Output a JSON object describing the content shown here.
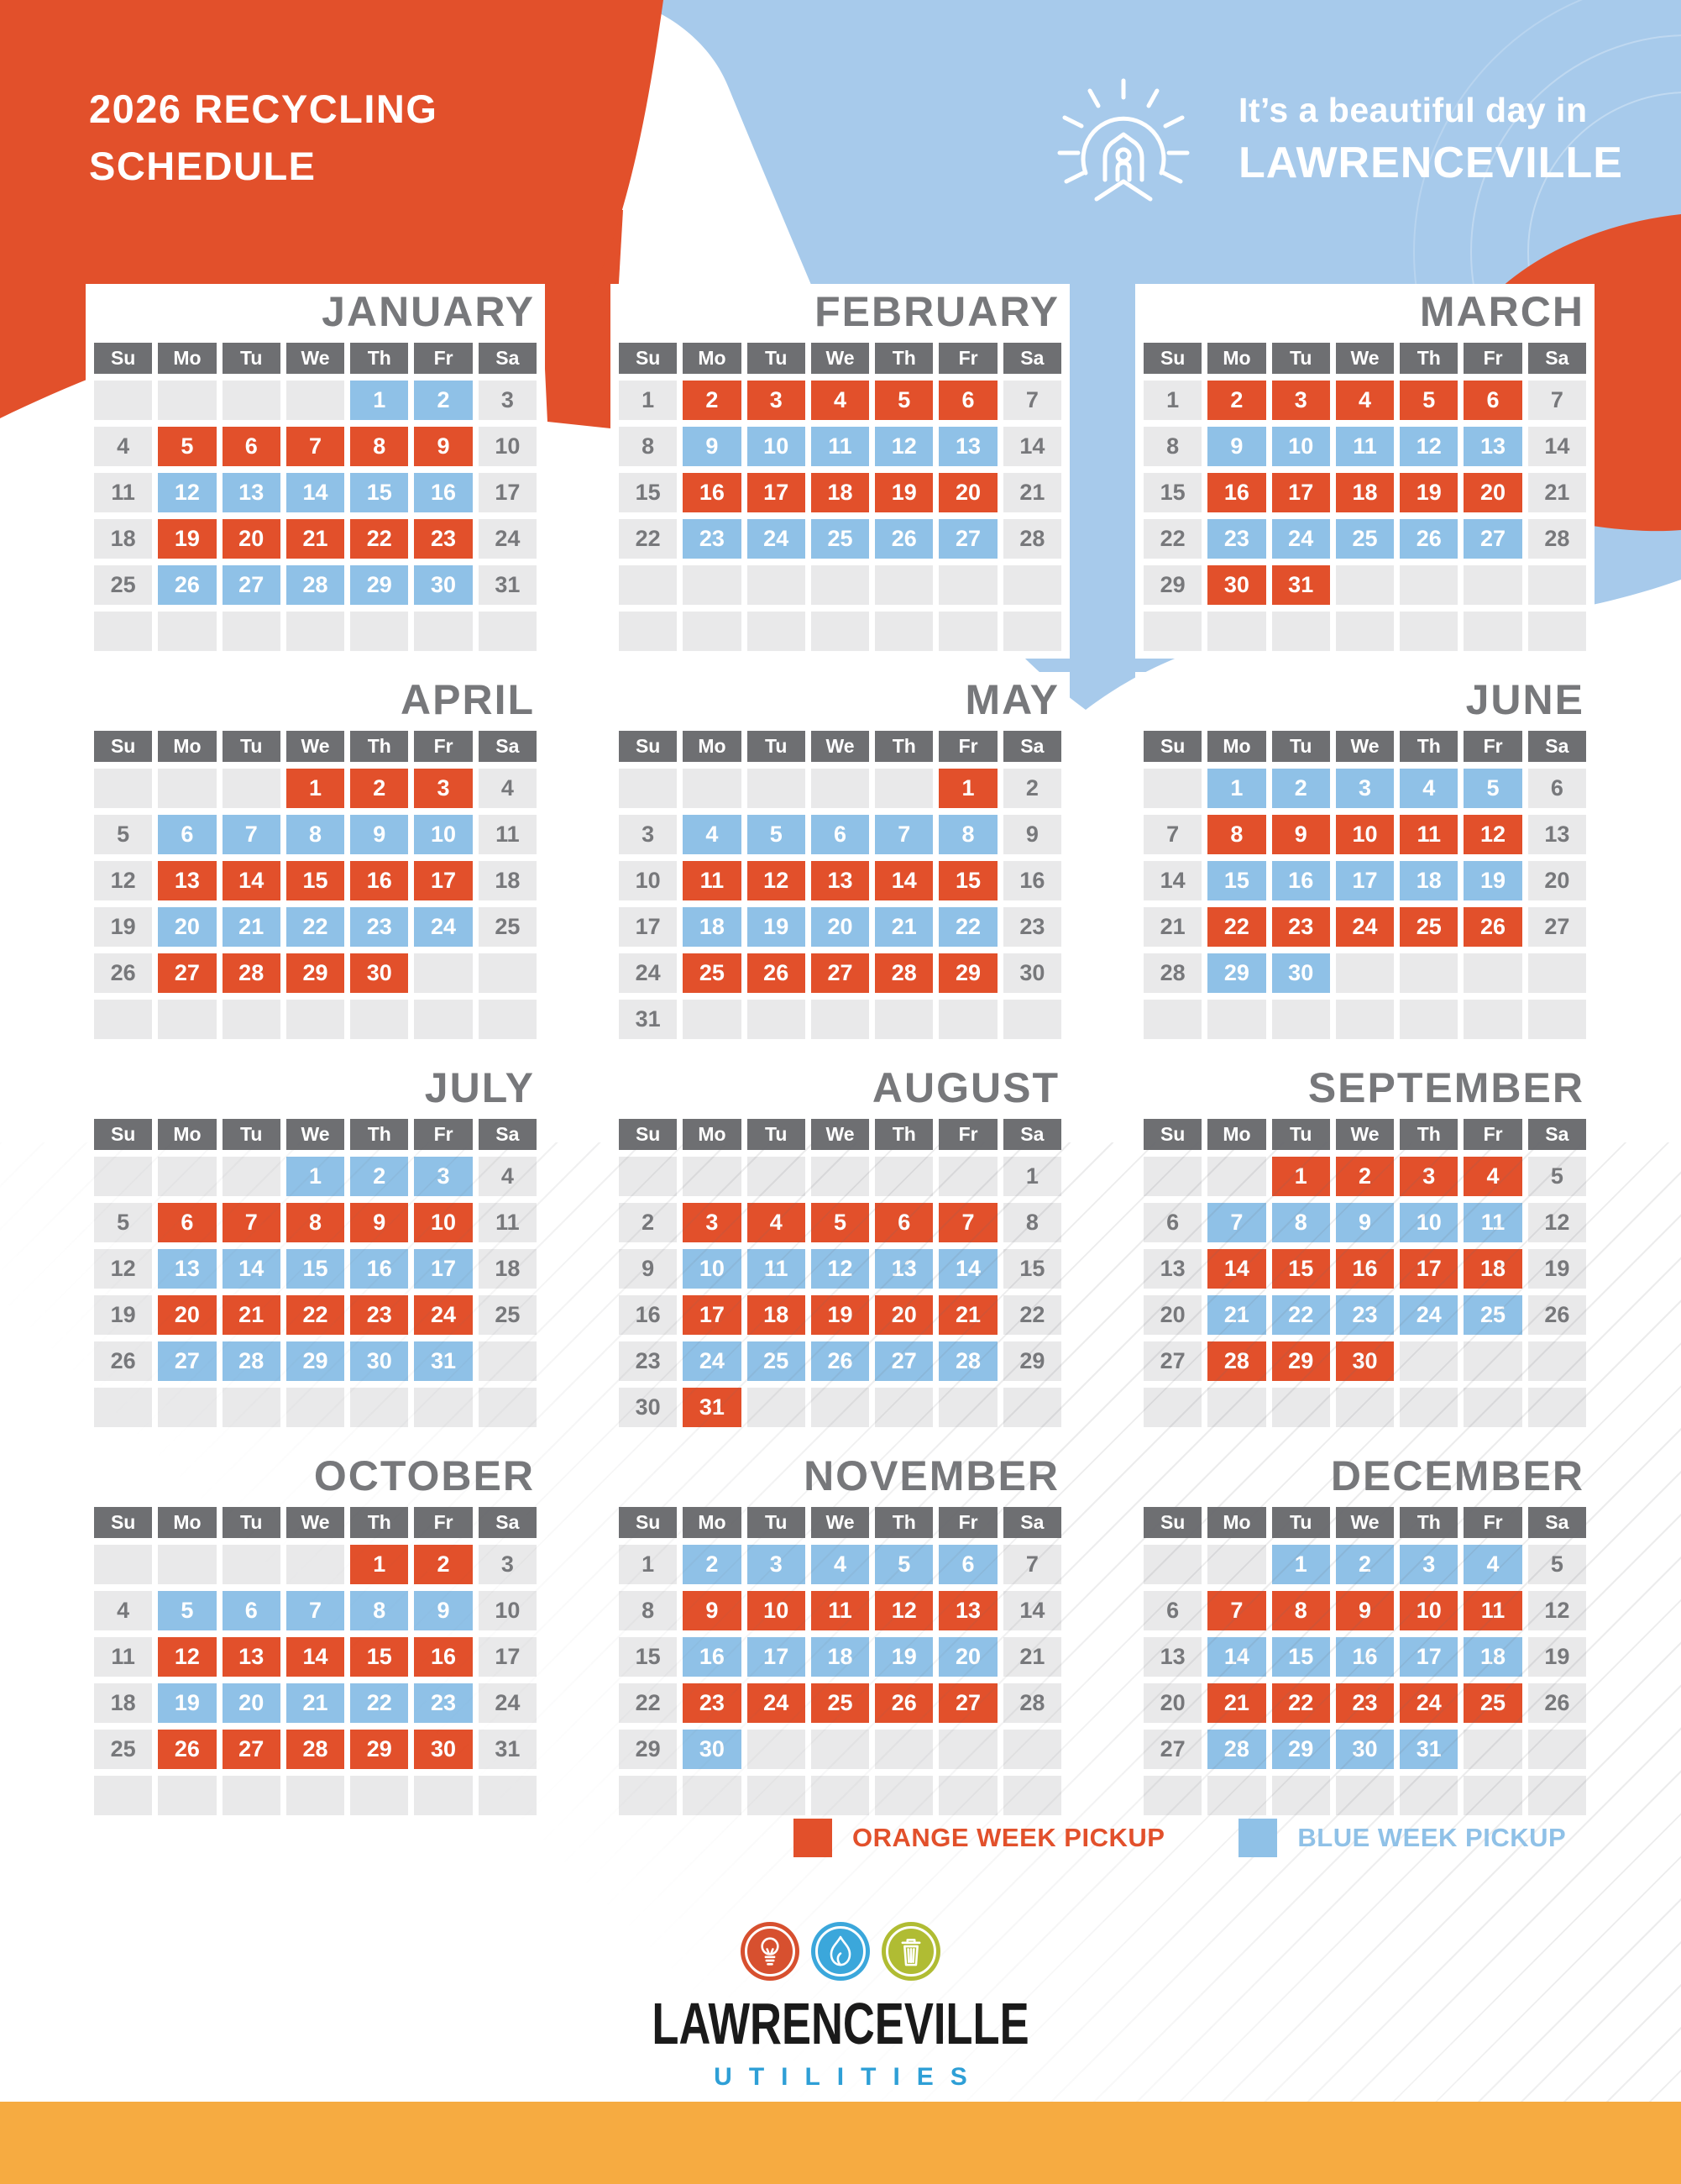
{
  "header": {
    "title_line1": "2026 RECYCLING",
    "title_line2": "SCHEDULE",
    "tagline_line1": "It’s a beautiful day in",
    "tagline_line2": "LAWRENCEVILLE"
  },
  "day_headers": [
    "Su",
    "Mo",
    "Tu",
    "We",
    "Th",
    "Fr",
    "Sa"
  ],
  "legend": [
    {
      "key": "orange",
      "label": "ORANGE WEEK PICKUP",
      "color": "#E2502B"
    },
    {
      "key": "blue",
      "label": "BLUE WEEK PICKUP",
      "color": "#8FC1E7"
    }
  ],
  "footer_logo": {
    "icons": [
      "lightbulb-icon",
      "flame-icon",
      "trash-icon"
    ],
    "name": "LAWRENCEVILLE",
    "sub": "UTILITIES"
  },
  "colors": {
    "orange": "#E2502B",
    "blue_cell": "#8FC1E7",
    "blue_bg": "#A7CAEB",
    "day_header_bg": "#6E6F72",
    "empty_cell_bg": "#E9E9EA",
    "muted_text": "#77787B",
    "footer_bar": "#F6AB41",
    "logo_black": "#1A1A1A",
    "utilities_blue": "#2E9FD6",
    "circle_orange": "#D7502F",
    "circle_blue": "#3BA7DB",
    "circle_olive": "#B0BC33"
  },
  "months": [
    {
      "name": "JANUARY",
      "cells": [
        "",
        "",
        "",
        "",
        "1b",
        "2b",
        "3g",
        "4g",
        "5o",
        "6o",
        "7o",
        "8o",
        "9o",
        "10g",
        "11g",
        "12b",
        "13b",
        "14b",
        "15b",
        "16b",
        "17g",
        "18g",
        "19o",
        "20o",
        "21o",
        "22o",
        "23o",
        "24g",
        "25g",
        "26b",
        "27b",
        "28b",
        "29b",
        "30b",
        "31g",
        "",
        "",
        "",
        "",
        "",
        "",
        ""
      ]
    },
    {
      "name": "FEBRUARY",
      "cells": [
        "1g",
        "2o",
        "3o",
        "4o",
        "5o",
        "6o",
        "7g",
        "8g",
        "9b",
        "10b",
        "11b",
        "12b",
        "13b",
        "14g",
        "15g",
        "16o",
        "17o",
        "18o",
        "19o",
        "20o",
        "21g",
        "22g",
        "23b",
        "24b",
        "25b",
        "26b",
        "27b",
        "28g",
        "",
        "",
        "",
        "",
        "",
        "",
        "",
        "",
        "",
        "",
        "",
        "",
        "",
        ""
      ]
    },
    {
      "name": "MARCH",
      "cells": [
        "1g",
        "2o",
        "3o",
        "4o",
        "5o",
        "6o",
        "7g",
        "8g",
        "9b",
        "10b",
        "11b",
        "12b",
        "13b",
        "14g",
        "15g",
        "16o",
        "17o",
        "18o",
        "19o",
        "20o",
        "21g",
        "22g",
        "23b",
        "24b",
        "25b",
        "26b",
        "27b",
        "28g",
        "29g",
        "30o",
        "31o",
        "",
        "",
        "",
        "",
        "",
        "",
        "",
        "",
        "",
        "",
        ""
      ]
    },
    {
      "name": "APRIL",
      "cells": [
        "",
        "",
        "",
        "1o",
        "2o",
        "3o",
        "4g",
        "5g",
        "6b",
        "7b",
        "8b",
        "9b",
        "10b",
        "11g",
        "12g",
        "13o",
        "14o",
        "15o",
        "16o",
        "17o",
        "18g",
        "19g",
        "20b",
        "21b",
        "22b",
        "23b",
        "24b",
        "25g",
        "26g",
        "27o",
        "28o",
        "29o",
        "30o",
        "",
        "",
        "",
        "",
        "",
        "",
        "",
        "",
        ""
      ]
    },
    {
      "name": "MAY",
      "cells": [
        "",
        "",
        "",
        "",
        "",
        "1o",
        "2g",
        "3g",
        "4b",
        "5b",
        "6b",
        "7b",
        "8b",
        "9g",
        "10g",
        "11o",
        "12o",
        "13o",
        "14o",
        "15o",
        "16g",
        "17g",
        "18b",
        "19b",
        "20b",
        "21b",
        "22b",
        "23g",
        "24g",
        "25o",
        "26o",
        "27o",
        "28o",
        "29o",
        "30g",
        "31g",
        "",
        "",
        "",
        "",
        "",
        ""
      ]
    },
    {
      "name": "JUNE",
      "cells": [
        "",
        "1b",
        "2b",
        "3b",
        "4b",
        "5b",
        "6g",
        "7g",
        "8o",
        "9o",
        "10o",
        "11o",
        "12o",
        "13g",
        "14g",
        "15b",
        "16b",
        "17b",
        "18b",
        "19b",
        "20g",
        "21g",
        "22o",
        "23o",
        "24o",
        "25o",
        "26o",
        "27g",
        "28g",
        "29b",
        "30b",
        "",
        "",
        "",
        "",
        "",
        "",
        "",
        "",
        "",
        "",
        ""
      ]
    },
    {
      "name": "JULY",
      "cells": [
        "",
        "",
        "",
        "1b",
        "2b",
        "3b",
        "4g",
        "5g",
        "6o",
        "7o",
        "8o",
        "9o",
        "10o",
        "11g",
        "12g",
        "13b",
        "14b",
        "15b",
        "16b",
        "17b",
        "18g",
        "19g",
        "20o",
        "21o",
        "22o",
        "23o",
        "24o",
        "25g",
        "26g",
        "27b",
        "28b",
        "29b",
        "30b",
        "31b",
        "",
        "",
        "",
        "",
        "",
        "",
        "",
        ""
      ]
    },
    {
      "name": "AUGUST",
      "cells": [
        "",
        "",
        "",
        "",
        "",
        "",
        "1g",
        "2g",
        "3o",
        "4o",
        "5o",
        "6o",
        "7o",
        "8g",
        "9g",
        "10b",
        "11b",
        "12b",
        "13b",
        "14b",
        "15g",
        "16g",
        "17o",
        "18o",
        "19o",
        "20o",
        "21o",
        "22g",
        "23g",
        "24b",
        "25b",
        "26b",
        "27b",
        "28b",
        "29g",
        "30g",
        "31o",
        "",
        "",
        "",
        "",
        ""
      ]
    },
    {
      "name": "SEPTEMBER",
      "cells": [
        "",
        "",
        "1o",
        "2o",
        "3o",
        "4o",
        "5g",
        "6g",
        "7b",
        "8b",
        "9b",
        "10b",
        "11b",
        "12g",
        "13g",
        "14o",
        "15o",
        "16o",
        "17o",
        "18o",
        "19g",
        "20g",
        "21b",
        "22b",
        "23b",
        "24b",
        "25b",
        "26g",
        "27g",
        "28o",
        "29o",
        "30o",
        "",
        "",
        "",
        "",
        "",
        "",
        "",
        "",
        "",
        ""
      ]
    },
    {
      "name": "OCTOBER",
      "cells": [
        "",
        "",
        "",
        "",
        "1o",
        "2o",
        "3g",
        "4g",
        "5b",
        "6b",
        "7b",
        "8b",
        "9b",
        "10g",
        "11g",
        "12o",
        "13o",
        "14o",
        "15o",
        "16o",
        "17g",
        "18g",
        "19b",
        "20b",
        "21b",
        "22b",
        "23b",
        "24g",
        "25g",
        "26o",
        "27o",
        "28o",
        "29o",
        "30o",
        "31g",
        "",
        "",
        "",
        "",
        "",
        "",
        ""
      ]
    },
    {
      "name": "NOVEMBER",
      "cells": [
        "1g",
        "2b",
        "3b",
        "4b",
        "5b",
        "6b",
        "7g",
        "8g",
        "9o",
        "10o",
        "11o",
        "12o",
        "13o",
        "14g",
        "15g",
        "16b",
        "17b",
        "18b",
        "19b",
        "20b",
        "21g",
        "22g",
        "23o",
        "24o",
        "25o",
        "26o",
        "27o",
        "28g",
        "29g",
        "30b",
        "",
        "",
        "",
        "",
        "",
        "",
        "",
        "",
        "",
        "",
        "",
        ""
      ]
    },
    {
      "name": "DECEMBER",
      "cells": [
        "",
        "",
        "1b",
        "2b",
        "3b",
        "4b",
        "5g",
        "6g",
        "7o",
        "8o",
        "9o",
        "10o",
        "11o",
        "12g",
        "13g",
        "14b",
        "15b",
        "16b",
        "17b",
        "18b",
        "19g",
        "20g",
        "21o",
        "22o",
        "23o",
        "24o",
        "25o",
        "26g",
        "27g",
        "28b",
        "29b",
        "30b",
        "31b",
        "",
        "",
        "",
        "",
        "",
        "",
        "",
        "",
        ""
      ]
    }
  ]
}
